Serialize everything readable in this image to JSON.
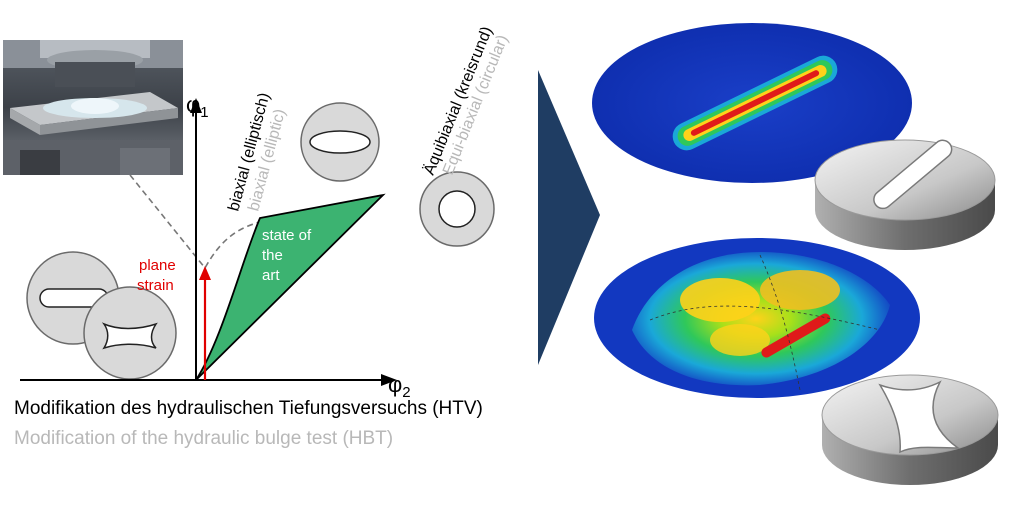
{
  "axes": {
    "y_symbol": "φ",
    "y_subscript": "1",
    "x_symbol": "φ",
    "x_subscript": "2"
  },
  "labels": {
    "plane_strain_line1": "plane",
    "plane_strain_line2": "strain",
    "state_of_art_line1": "state of",
    "state_of_art_line2": "the",
    "state_of_art_line3": "art",
    "biaxial_de": "biaxial (elliptisch)",
    "biaxial_en": "biaxial (elliptic)",
    "equibiaxial_de": "Äquibiaxial (kreisrund)",
    "equibiaxial_en": "Equi-biaxial (circular)"
  },
  "caption": {
    "german": "Modifikation des hydraulischen Tiefungsversuchs (HTV)",
    "english": "Modification of the hydraulic bulge test (HBT)"
  },
  "colors": {
    "state_of_art_fill": "#3cb371",
    "plane_strain": "#e00000",
    "arrow": "#1f3d63",
    "secondary_text": "#b8b8b8",
    "specimen_fill": "#d9d9d9"
  }
}
